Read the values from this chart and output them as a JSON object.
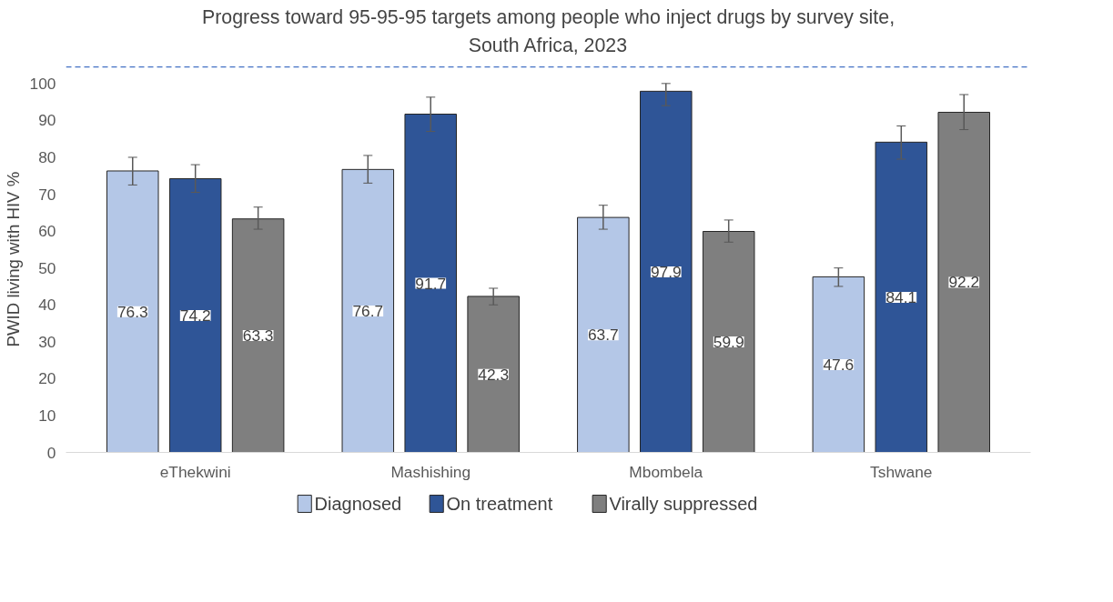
{
  "chart_data": {
    "type": "bar",
    "title": "Progress toward 95-95-95 targets among people who inject drugs by survey site,\nSouth Africa, 2023",
    "ylabel": "PWID living with HIV  %",
    "categories": [
      "eThekwini",
      "Mashishing",
      "Mbombela",
      "Tshwane"
    ],
    "series": [
      {
        "name": "Diagnosed",
        "color": "#b4c7e7",
        "values": [
          76.3,
          76.7,
          63.7,
          47.6
        ],
        "errors": [
          [
            72.5,
            80
          ],
          [
            73,
            80.5
          ],
          [
            60.5,
            67
          ],
          [
            45,
            50
          ]
        ]
      },
      {
        "name": "On treatment",
        "color": "#2f5597",
        "values": [
          74.2,
          91.7,
          97.9,
          84.1
        ],
        "errors": [
          [
            70.5,
            78
          ],
          [
            87,
            96.3
          ],
          [
            94,
            100
          ],
          [
            79.5,
            88.5
          ]
        ]
      },
      {
        "name": "Virally suppressed",
        "color": "#7f7f7f",
        "values": [
          63.3,
          42.3,
          59.9,
          92.2
        ],
        "errors": [
          [
            60.5,
            66.5
          ],
          [
            40,
            44.5
          ],
          [
            57,
            63
          ],
          [
            87.5,
            97
          ]
        ]
      }
    ],
    "ylim": [
      0,
      106
    ],
    "yticks": [
      0,
      10,
      20,
      30,
      40,
      50,
      60,
      70,
      80,
      90,
      100
    ],
    "ref_lines": [
      {
        "axis": "y",
        "value": 104.5,
        "label": null,
        "color": "#4472c4",
        "line_style": "dashed"
      }
    ],
    "data_labels": true,
    "grid": false,
    "legend": "bottom"
  }
}
